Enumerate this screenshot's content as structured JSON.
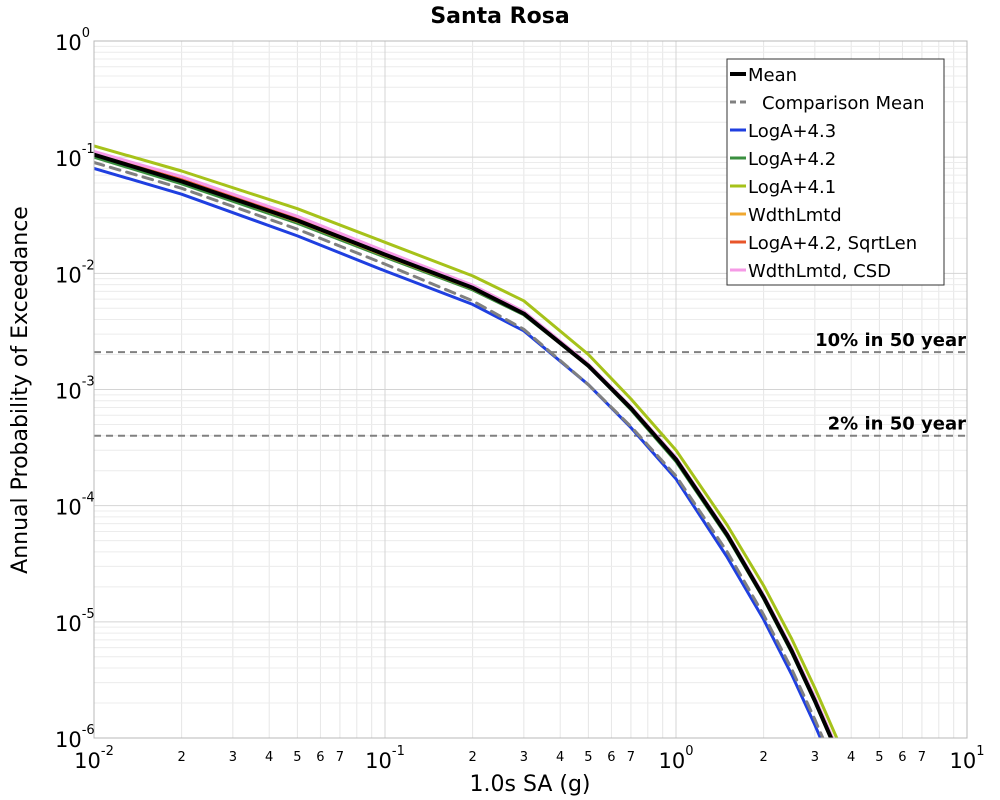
{
  "chart_data": {
    "type": "line",
    "title": "Santa Rosa",
    "xlabel": "1.0s SA (g)",
    "ylabel": "Annual Probability of Exceedance",
    "xscale": "log",
    "yscale": "log",
    "xlim": [
      0.01,
      10
    ],
    "ylim": [
      1e-06,
      1
    ],
    "grid": true,
    "legend_position": "top-right",
    "x_ticks": [
      {
        "value": 0.01,
        "base": "10",
        "exp": "-2"
      },
      {
        "value": 0.1,
        "base": "10",
        "exp": "-1"
      },
      {
        "value": 1,
        "base": "10",
        "exp": "0"
      },
      {
        "value": 10,
        "base": "10",
        "exp": "1"
      }
    ],
    "x_minor_labels": [
      "2",
      "3",
      "4",
      "5",
      "6",
      "7"
    ],
    "y_ticks": [
      {
        "value": 1,
        "base": "10",
        "exp": "0"
      },
      {
        "value": 0.1,
        "base": "10",
        "exp": "-1"
      },
      {
        "value": 0.01,
        "base": "10",
        "exp": "-2"
      },
      {
        "value": 0.001,
        "base": "10",
        "exp": "-3"
      },
      {
        "value": 0.0001,
        "base": "10",
        "exp": "-4"
      },
      {
        "value": 1e-05,
        "base": "10",
        "exp": "-5"
      },
      {
        "value": 1e-06,
        "base": "10",
        "exp": "-6"
      }
    ],
    "reference_lines": [
      {
        "label": "10% in 50 year",
        "y": 0.0021,
        "color": "#808080"
      },
      {
        "label": "2% in 50 year",
        "y": 0.0004,
        "color": "#808080"
      }
    ],
    "x": [
      0.01,
      0.02,
      0.05,
      0.1,
      0.2,
      0.3,
      0.5,
      0.7,
      1.0,
      1.5,
      2.0,
      2.5,
      3.0,
      4.0
    ],
    "series": [
      {
        "name": "LogA+4.3",
        "color": "#1f3fe0",
        "dash": "",
        "width": 3,
        "values": [
          0.08,
          0.048,
          0.021,
          0.0105,
          0.0054,
          0.0032,
          0.0011,
          0.00047,
          0.00017,
          3.6e-05,
          1.05e-05,
          3.5e-06,
          1.3e-06,
          2.4e-07
        ]
      },
      {
        "name": "LogA+4.2",
        "color": "#3a8f3f",
        "dash": "",
        "width": 3,
        "values": [
          0.1,
          0.059,
          0.027,
          0.0138,
          0.0072,
          0.0044,
          0.0016,
          0.00067,
          0.00024,
          5.4e-05,
          1.58e-05,
          5.4e-06,
          2.05e-06,
          3.9e-07
        ]
      },
      {
        "name": "LogA+4.1",
        "color": "#a6c21a",
        "dash": "",
        "width": 3,
        "values": [
          0.125,
          0.076,
          0.036,
          0.0185,
          0.0095,
          0.0058,
          0.002,
          0.00083,
          0.0003,
          6.8e-05,
          2.05e-05,
          7.1e-06,
          2.7e-06,
          5.2e-07
        ]
      },
      {
        "name": "WdthLmtd",
        "color": "#f0a830",
        "dash": "",
        "width": 3,
        "values": [
          0.105,
          0.062,
          0.028,
          0.0142,
          0.0074,
          0.0045,
          0.0016,
          0.00069,
          0.00025,
          5.6e-05,
          1.65e-05,
          5.7e-06,
          2.15e-06,
          4.1e-07
        ]
      },
      {
        "name": "LogA+4.2, SqrtLen",
        "color": "#e8552a",
        "dash": "",
        "width": 3,
        "values": [
          0.107,
          0.064,
          0.0295,
          0.0148,
          0.0076,
          0.0046,
          0.00163,
          0.0007,
          0.000255,
          5.7e-05,
          1.68e-05,
          5.8e-06,
          2.2e-06,
          4.2e-07
        ]
      },
      {
        "name": "WdthLmtd, CSD",
        "color": "#f59ae6",
        "dash": "",
        "width": 3,
        "values": [
          0.112,
          0.068,
          0.031,
          0.0155,
          0.0079,
          0.0047,
          0.00165,
          0.00071,
          0.00026,
          5.8e-05,
          1.7e-05,
          5.9e-06,
          2.25e-06,
          4.3e-07
        ]
      },
      {
        "name": "Comparison Mean",
        "color": "#808080",
        "dash": "10,7",
        "width": 3,
        "values": [
          0.09,
          0.054,
          0.024,
          0.012,
          0.0058,
          0.0033,
          0.0011,
          0.00048,
          0.00018,
          4e-05,
          1.15e-05,
          3.9e-06,
          1.45e-06,
          2.7e-07
        ]
      },
      {
        "name": "Mean",
        "color": "#000000",
        "dash": "",
        "width": 4,
        "values": [
          0.105,
          0.062,
          0.0285,
          0.0145,
          0.0075,
          0.0045,
          0.0016,
          0.00069,
          0.00025,
          5.6e-05,
          1.63e-05,
          5.6e-06,
          2.1e-06,
          4e-07
        ]
      }
    ],
    "legend_order": [
      "Mean",
      "Comparison Mean",
      "LogA+4.3",
      "LogA+4.2",
      "LogA+4.1",
      "WdthLmtd",
      "LogA+4.2, SqrtLen",
      "WdthLmtd, CSD"
    ]
  }
}
